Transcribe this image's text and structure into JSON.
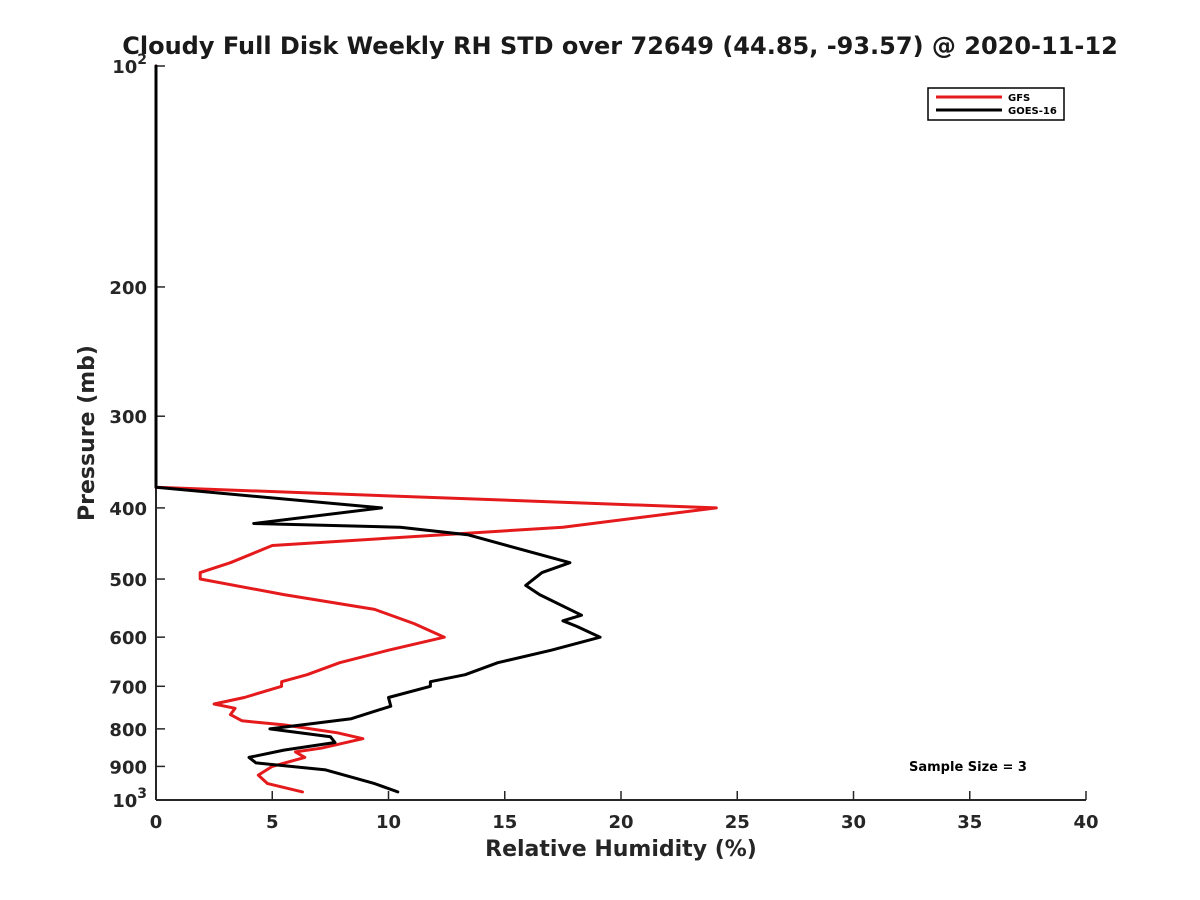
{
  "chart_data": {
    "type": "line",
    "title": "Cloudy Full Disk Weekly RH STD over 72649 (44.85, -93.57) @ 2020-11-12",
    "xlabel": "Relative Humidity (%)",
    "ylabel": "Pressure (mb)",
    "xlim": [
      0,
      40
    ],
    "ylim": [
      100,
      1000
    ],
    "y_scale": "log",
    "y_reversed": true,
    "x_ticks": [
      0,
      5,
      10,
      15,
      20,
      25,
      30,
      35,
      40
    ],
    "x_tick_labels": [
      "0",
      "5",
      "10",
      "15",
      "20",
      "25",
      "30",
      "35",
      "40"
    ],
    "y_ticks": [
      100,
      200,
      300,
      400,
      500,
      600,
      700,
      800,
      900,
      1000
    ],
    "y_tick_labels": [
      {
        "base": "10",
        "exp": "2"
      },
      {
        "base": "200"
      },
      {
        "base": "300"
      },
      {
        "base": "400"
      },
      {
        "base": "500"
      },
      {
        "base": "600"
      },
      {
        "base": "700"
      },
      {
        "base": "800"
      },
      {
        "base": "900"
      },
      {
        "base": "10",
        "exp": "3"
      }
    ],
    "grid": false,
    "legend_position": "top-right",
    "annotation": "Sample Size = 3",
    "series": [
      {
        "name": "GFS",
        "color": "#e41a1c",
        "points": [
          [
            0,
            100
          ],
          [
            0,
            375
          ],
          [
            24.1,
            400
          ],
          [
            17.5,
            425
          ],
          [
            5,
            450
          ],
          [
            3.2,
            475
          ],
          [
            1.9,
            490
          ],
          [
            1.9,
            500
          ],
          [
            5.5,
            525
          ],
          [
            9.4,
            550
          ],
          [
            11.1,
            575
          ],
          [
            12.4,
            600
          ],
          [
            10.0,
            625
          ],
          [
            7.9,
            650
          ],
          [
            6.5,
            675
          ],
          [
            5.4,
            690
          ],
          [
            5.4,
            700
          ],
          [
            3.8,
            725
          ],
          [
            2.5,
            740
          ],
          [
            3.4,
            750
          ],
          [
            3.2,
            765
          ],
          [
            3.7,
            780
          ],
          [
            5.5,
            790
          ],
          [
            7.8,
            810
          ],
          [
            8.9,
            825
          ],
          [
            7.1,
            850
          ],
          [
            6.0,
            860
          ],
          [
            6.4,
            875
          ],
          [
            5.0,
            900
          ],
          [
            4.4,
            925
          ],
          [
            4.8,
            950
          ],
          [
            6.3,
            975
          ]
        ]
      },
      {
        "name": "GOES-16",
        "color": "#000000",
        "points": [
          [
            0,
            100
          ],
          [
            0,
            375
          ],
          [
            9.7,
            400
          ],
          [
            4.2,
            420
          ],
          [
            10.5,
            425
          ],
          [
            13.4,
            435
          ],
          [
            17.8,
            475
          ],
          [
            16.6,
            490
          ],
          [
            15.9,
            510
          ],
          [
            16.5,
            525
          ],
          [
            18.3,
            560
          ],
          [
            17.5,
            570
          ],
          [
            18.1,
            580
          ],
          [
            19.1,
            600
          ],
          [
            17.0,
            625
          ],
          [
            14.7,
            650
          ],
          [
            13.3,
            675
          ],
          [
            11.8,
            690
          ],
          [
            11.8,
            700
          ],
          [
            10.0,
            725
          ],
          [
            10.1,
            745
          ],
          [
            8.4,
            775
          ],
          [
            4.9,
            800
          ],
          [
            7.5,
            820
          ],
          [
            7.7,
            835
          ],
          [
            5.5,
            855
          ],
          [
            4.0,
            875
          ],
          [
            4.3,
            890
          ],
          [
            7.3,
            910
          ],
          [
            9.4,
            950
          ],
          [
            10.4,
            975
          ]
        ]
      }
    ]
  }
}
